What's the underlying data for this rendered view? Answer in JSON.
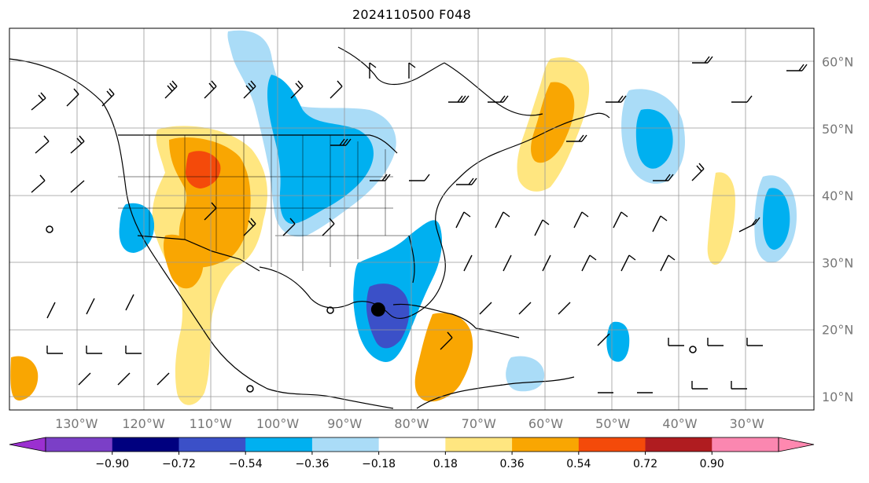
{
  "title": "2024110500 F048",
  "map": {
    "longitude_labels": [
      "130°W",
      "120°W",
      "110°W",
      "100°W",
      "90°W",
      "80°W",
      "70°W",
      "60°W",
      "50°W",
      "40°W",
      "30°W"
    ],
    "longitude_values": [
      -130,
      -120,
      -110,
      -100,
      -90,
      -80,
      -70,
      -60,
      -50,
      -40,
      -30
    ],
    "latitude_labels": [
      "60°N",
      "50°N",
      "40°N",
      "30°N",
      "20°N",
      "10°N"
    ],
    "latitude_values": [
      60,
      50,
      40,
      30,
      20,
      10
    ],
    "extent": {
      "lon_min": -140,
      "lon_max": -20,
      "lat_min": 8,
      "lat_max": 65
    },
    "gridlines": true,
    "marker": {
      "lon": -85,
      "lat": 23
    }
  },
  "colorbar": {
    "tick_labels": [
      "−0.90",
      "−0.72",
      "−0.54",
      "−0.36",
      "−0.18",
      "0.18",
      "0.36",
      "0.54",
      "0.72",
      "0.90"
    ],
    "levels": [
      -0.9,
      -0.72,
      -0.54,
      -0.36,
      -0.18,
      0.18,
      0.36,
      0.54,
      0.72,
      0.9
    ],
    "colors": [
      "#7b3fc7",
      "#00007f",
      "#3b50c8",
      "#00b0f0",
      "#aadcf7",
      "#ffffff",
      "#ffe680",
      "#f9a602",
      "#f44a0a",
      "#b01c20",
      "#fb87b0"
    ],
    "extend_low_color": "#9b30d0",
    "extend_high_color": "#ff88b0",
    "orientation": "horizontal",
    "placement": "bottom"
  }
}
